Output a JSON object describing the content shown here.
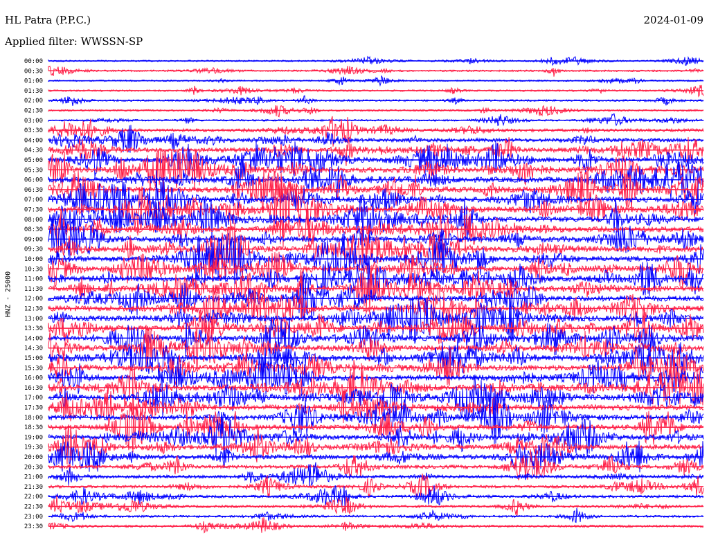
{
  "header": {
    "station": "HL Patra (P.P.C.)",
    "date": "2024-01-09",
    "filter": "Applied filter: WWSSN-SP"
  },
  "chart_data": {
    "type": "line",
    "title": "HL Patra (P.P.C.)",
    "ylabel": "HNZ - 25000",
    "grid": false,
    "colors": [
      "#0000ff",
      "#ff1e46"
    ],
    "trace_labels": [
      "00:00",
      "00:30",
      "01:00",
      "01:30",
      "02:00",
      "02:30",
      "03:00",
      "03:30",
      "04:00",
      "04:30",
      "05:00",
      "05:30",
      "06:00",
      "06:30",
      "07:00",
      "07:30",
      "08:00",
      "08:30",
      "09:00",
      "09:30",
      "10:00",
      "10:30",
      "11:00",
      "11:30",
      "12:00",
      "12:30",
      "13:00",
      "13:30",
      "14:00",
      "14:30",
      "15:00",
      "15:30",
      "16:00",
      "16:30",
      "17:00",
      "17:30",
      "18:00",
      "18:30",
      "19:00",
      "19:30",
      "20:00",
      "20:30",
      "21:00",
      "21:30",
      "22:00",
      "22:30",
      "23:00",
      "23:30"
    ],
    "activity_level": [
      0.15,
      0.2,
      0.15,
      0.18,
      0.22,
      0.2,
      0.2,
      0.45,
      0.6,
      0.8,
      0.9,
      1.0,
      1.0,
      1.0,
      1.0,
      1.0,
      1.0,
      1.0,
      1.0,
      1.0,
      1.0,
      1.0,
      1.0,
      1.0,
      1.0,
      1.0,
      1.0,
      1.0,
      1.0,
      1.0,
      1.0,
      1.0,
      1.0,
      1.0,
      1.0,
      1.0,
      0.95,
      0.9,
      0.9,
      0.85,
      0.8,
      0.6,
      0.5,
      0.45,
      0.4,
      0.35,
      0.3,
      0.3
    ]
  }
}
